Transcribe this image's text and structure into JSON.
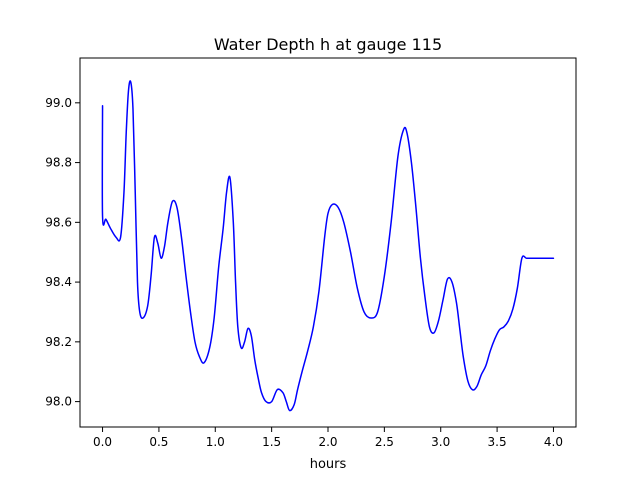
{
  "chart_data": {
    "type": "line",
    "title": "Water Depth h at gauge 115",
    "xlabel": "hours",
    "ylabel": "",
    "xlim": [
      -0.2,
      4.2
    ],
    "ylim": [
      97.915,
      99.15
    ],
    "x_ticks": [
      0.0,
      0.5,
      1.0,
      1.5,
      2.0,
      2.5,
      3.0,
      3.5,
      4.0
    ],
    "x_tick_labels": [
      "0.0",
      "0.5",
      "1.0",
      "1.5",
      "2.0",
      "2.5",
      "3.0",
      "3.5",
      "4.0"
    ],
    "y_ticks": [
      98.0,
      98.2,
      98.4,
      98.6,
      98.8,
      99.0
    ],
    "y_tick_labels": [
      "98.0",
      "98.2",
      "98.4",
      "98.6",
      "98.8",
      "99.0"
    ],
    "grid": false,
    "legend": "none",
    "series": [
      {
        "color": "#0000ff",
        "x": [
          0.0,
          0.0,
          0.03,
          0.07,
          0.12,
          0.16,
          0.19,
          0.21,
          0.23,
          0.25,
          0.27,
          0.29,
          0.31,
          0.33,
          0.36,
          0.4,
          0.43,
          0.46,
          0.49,
          0.52,
          0.55,
          0.58,
          0.62,
          0.66,
          0.7,
          0.74,
          0.78,
          0.82,
          0.86,
          0.9,
          0.95,
          0.99,
          1.03,
          1.07,
          1.1,
          1.13,
          1.16,
          1.18,
          1.2,
          1.23,
          1.26,
          1.29,
          1.32,
          1.35,
          1.38,
          1.41,
          1.45,
          1.5,
          1.55,
          1.6,
          1.63,
          1.66,
          1.7,
          1.73,
          1.77,
          1.82,
          1.87,
          1.92,
          1.97,
          2.0,
          2.04,
          2.09,
          2.14,
          2.2,
          2.26,
          2.32,
          2.38,
          2.44,
          2.5,
          2.56,
          2.62,
          2.67,
          2.7,
          2.74,
          2.78,
          2.82,
          2.86,
          2.9,
          2.94,
          2.98,
          3.02,
          3.06,
          3.1,
          3.14,
          3.17,
          3.2,
          3.24,
          3.28,
          3.32,
          3.36,
          3.4,
          3.44,
          3.48,
          3.52,
          3.56,
          3.6,
          3.64,
          3.68,
          3.72,
          3.76,
          3.8,
          3.84,
          3.88,
          3.92,
          3.96,
          4.0
        ],
        "y": [
          98.99,
          98.62,
          98.61,
          98.58,
          98.55,
          98.55,
          98.7,
          98.9,
          99.04,
          99.07,
          98.98,
          98.7,
          98.4,
          98.3,
          98.28,
          98.32,
          98.42,
          98.55,
          98.53,
          98.48,
          98.52,
          98.6,
          98.67,
          98.65,
          98.55,
          98.42,
          98.3,
          98.2,
          98.15,
          98.13,
          98.18,
          98.28,
          98.45,
          98.58,
          98.7,
          98.75,
          98.6,
          98.4,
          98.25,
          98.18,
          98.2,
          98.245,
          98.22,
          98.14,
          98.08,
          98.03,
          98.0,
          98.0,
          98.04,
          98.03,
          98.0,
          97.97,
          97.99,
          98.04,
          98.1,
          98.17,
          98.25,
          98.37,
          98.55,
          98.63,
          98.66,
          98.65,
          98.6,
          98.5,
          98.38,
          98.3,
          98.28,
          98.3,
          98.42,
          98.6,
          98.82,
          98.91,
          98.9,
          98.8,
          98.65,
          98.48,
          98.35,
          98.25,
          98.23,
          98.27,
          98.34,
          98.41,
          98.4,
          98.33,
          98.24,
          98.15,
          98.07,
          98.04,
          98.05,
          98.09,
          98.12,
          98.17,
          98.21,
          98.24,
          98.25,
          98.27,
          98.31,
          98.38,
          98.48,
          98.48,
          98.48,
          98.48,
          98.48,
          98.48,
          98.48,
          98.48
        ],
        "line_width": 1.5
      }
    ]
  }
}
